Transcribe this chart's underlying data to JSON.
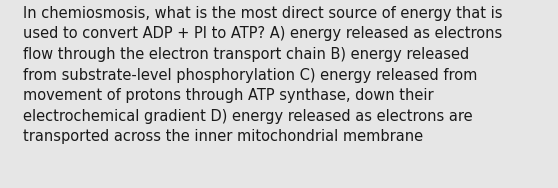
{
  "lines": [
    "In chemiosmosis, what is the most direct source of energy that is",
    "used to convert ADP + PI to ATP? A) energy released as electrons",
    "flow through the electron transport chain B) energy released",
    "from substrate-level phosphorylation C) energy released from",
    "movement of protons through ATP synthase, down their",
    "electrochemical gradient D) energy released as electrons are",
    "transported across the inner mitochondrial membrane"
  ],
  "background_color": "#e6e6e6",
  "text_color": "#1a1a1a",
  "font_size": 10.5,
  "fig_width": 5.58,
  "fig_height": 1.88,
  "dpi": 100
}
